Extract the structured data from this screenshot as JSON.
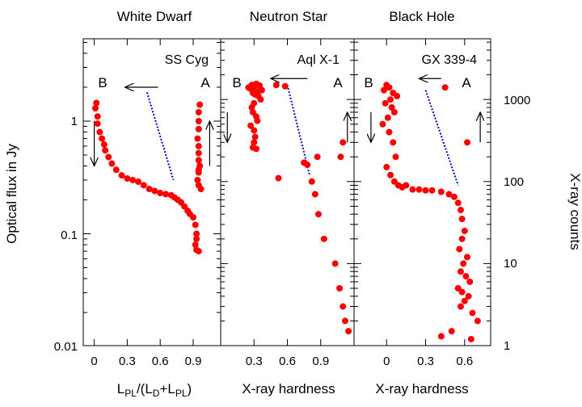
{
  "colors": {
    "points": "#ff0000",
    "guide_line": "#0000cc",
    "axes": "#000000"
  },
  "figure": {
    "left_axis_label": "Optical flux in Jy",
    "right_axis_label": "X-ray counts",
    "left_ticks": [
      "1",
      "0.1",
      "0.01"
    ],
    "right_ticks": [
      "1000",
      "100",
      "10",
      "1"
    ]
  },
  "chart_data": [
    {
      "type": "scatter",
      "title": "White Dwarf",
      "source": "SS Cyg",
      "xlabel_parts": [
        "L",
        "PL",
        "/(L",
        "D",
        "+L",
        "PL",
        ")"
      ],
      "xticks": [
        "0",
        "0.3",
        "0.6",
        "0.9"
      ],
      "xticks_values": [
        0,
        0.3,
        0.6,
        0.9
      ],
      "xlim": [
        -0.1,
        1.15
      ],
      "ylabel": "Optical flux in Jy",
      "ylim": [
        0.01,
        5
      ],
      "yscale": "log",
      "state_labels": [
        "B",
        "A"
      ],
      "series": [
        {
          "x": [
            0.02,
            0.01,
            0.03,
            0.03,
            0.05,
            0.07,
            0.09,
            0.1,
            0.13,
            0.16,
            0.2,
            0.25,
            0.3,
            0.35,
            0.4,
            0.45,
            0.5,
            0.55,
            0.6,
            0.65,
            0.7,
            0.73,
            0.76,
            0.79,
            0.82,
            0.85,
            0.87,
            0.9,
            0.92,
            0.93,
            0.93,
            0.92,
            0.93,
            0.95,
            0.96,
            0.95,
            0.95,
            0.95,
            0.94,
            0.95,
            0.95,
            0.95,
            0.96,
            0.95,
            0.94,
            0.95,
            0.97,
            0.95
          ],
          "y": [
            1.45,
            1.3,
            1.1,
            0.95,
            0.8,
            0.7,
            0.62,
            0.55,
            0.48,
            0.42,
            0.37,
            0.33,
            0.31,
            0.3,
            0.29,
            0.27,
            0.25,
            0.24,
            0.23,
            0.225,
            0.22,
            0.21,
            0.2,
            0.19,
            0.175,
            0.16,
            0.15,
            0.14,
            0.12,
            0.1,
            0.09,
            0.08,
            0.072,
            0.07,
            1.4,
            1.2,
            1.0,
            0.85,
            0.7,
            0.6,
            0.52,
            0.45,
            0.4,
            0.35,
            0.3,
            0.27,
            0.25,
            0.37
          ]
        }
      ],
      "guide_line": {
        "x": [
          0.48,
          0.72
        ],
        "y": [
          1.8,
          0.3
        ]
      },
      "arrows": [
        {
          "x": [
            0.58,
            0.28
          ],
          "y": [
            2.0,
            2.0
          ]
        },
        {
          "x": [
            0.0,
            0.0
          ],
          "y": [
            1.0,
            0.4
          ]
        },
        {
          "x": [
            1.05,
            1.05
          ],
          "y": [
            0.4,
            1.0
          ]
        }
      ]
    },
    {
      "type": "scatter",
      "title": "Neutron Star",
      "source": "Aql X-1",
      "xlabel": "X-ray hardness",
      "xticks": [
        "0.3",
        "0.6",
        "0.9"
      ],
      "xticks_values": [
        0.3,
        0.6,
        0.9
      ],
      "xlim": [
        0.0,
        1.2
      ],
      "ylim": [
        1,
        3000
      ],
      "yscale": "log",
      "state_labels": [
        "B",
        "A"
      ],
      "series": [
        {
          "x": [
            0.25,
            0.27,
            0.28,
            0.3,
            0.32,
            0.35,
            0.37,
            0.33,
            0.29,
            0.31,
            0.34,
            0.36,
            0.3,
            0.28,
            0.29,
            0.32,
            0.33,
            0.27,
            0.3,
            0.31,
            0.3,
            0.29,
            0.32,
            0.5,
            0.58,
            0.52,
            0.75,
            0.78,
            0.87,
            0.82,
            0.85,
            0.88,
            0.93,
            1.03,
            1.07,
            1.1,
            1.12,
            1.15,
            1.1,
            1.08
          ],
          "y": [
            1400,
            1350,
            1500,
            1420,
            1550,
            1480,
            1300,
            1250,
            1200,
            1150,
            1100,
            1000,
            900,
            800,
            700,
            620,
            550,
            480,
            420,
            350,
            300,
            260,
            250,
            1500,
            1450,
            110,
            170,
            160,
            200,
            100,
            70,
            40,
            20,
            10,
            5,
            3,
            2,
            1.5,
            300,
            200
          ]
        }
      ],
      "guide_line": {
        "x": [
          0.6,
          0.8
        ],
        "y": [
          1500,
          120
        ]
      },
      "arrows": [
        {
          "x": [
            0.78,
            0.45
          ],
          "y": [
            1800,
            1800
          ]
        },
        {
          "x": [
            0.06,
            0.06
          ],
          "y": [
            700,
            300
          ]
        },
        {
          "x": [
            1.14,
            1.14
          ],
          "y": [
            300,
            700
          ]
        }
      ]
    },
    {
      "type": "scatter",
      "title": "Black Hole",
      "source": "GX 339-4",
      "xlabel": "X-ray hardness",
      "xticks": [
        "0",
        "0.3",
        "0.6"
      ],
      "xticks_values": [
        0,
        0.3,
        0.6
      ],
      "xlim": [
        -0.25,
        0.8
      ],
      "ylabel": "X-ray counts",
      "ylim": [
        1,
        3000
      ],
      "yscale": "log",
      "state_labels": [
        "B",
        "A"
      ],
      "series": [
        {
          "x": [
            0.0,
            0.02,
            -0.02,
            0.05,
            0.08,
            0.03,
            -0.01,
            0.04,
            0.06,
            0.01,
            -0.03,
            0.02,
            0.05,
            0.07,
            0.0,
            0.03,
            0.06,
            0.09,
            0.12,
            0.15,
            0.2,
            0.25,
            0.3,
            0.35,
            0.42,
            0.48,
            0.52,
            0.55,
            0.57,
            0.58,
            0.6,
            0.58,
            0.56,
            0.62,
            0.59,
            0.57,
            0.61,
            0.64,
            0.55,
            0.58,
            0.63,
            0.6,
            0.57,
            0.66,
            0.7,
            0.5,
            0.42,
            0.65,
            0.62,
            0.45
          ],
          "y": [
            1500,
            1400,
            1300,
            1200,
            1100,
            1000,
            900,
            800,
            700,
            600,
            500,
            400,
            300,
            200,
            150,
            120,
            100,
            90,
            85,
            90,
            80,
            80,
            78,
            78,
            75,
            70,
            65,
            55,
            45,
            35,
            25,
            20,
            15,
            12,
            10,
            8,
            7,
            6,
            5,
            4.5,
            4,
            3.5,
            3,
            2.5,
            2,
            1.5,
            1.3,
            1.2,
            300,
            1400
          ]
        }
      ],
      "guide_line": {
        "x": [
          0.3,
          0.55
        ],
        "y": [
          1300,
          90
        ]
      },
      "arrows": [
        {
          "x": [
            0.42,
            0.25
          ],
          "y": [
            1800,
            1800
          ]
        },
        {
          "x": [
            -0.12,
            -0.12
          ],
          "y": [
            700,
            300
          ]
        },
        {
          "x": [
            0.72,
            0.72
          ],
          "y": [
            300,
            700
          ]
        }
      ]
    }
  ]
}
